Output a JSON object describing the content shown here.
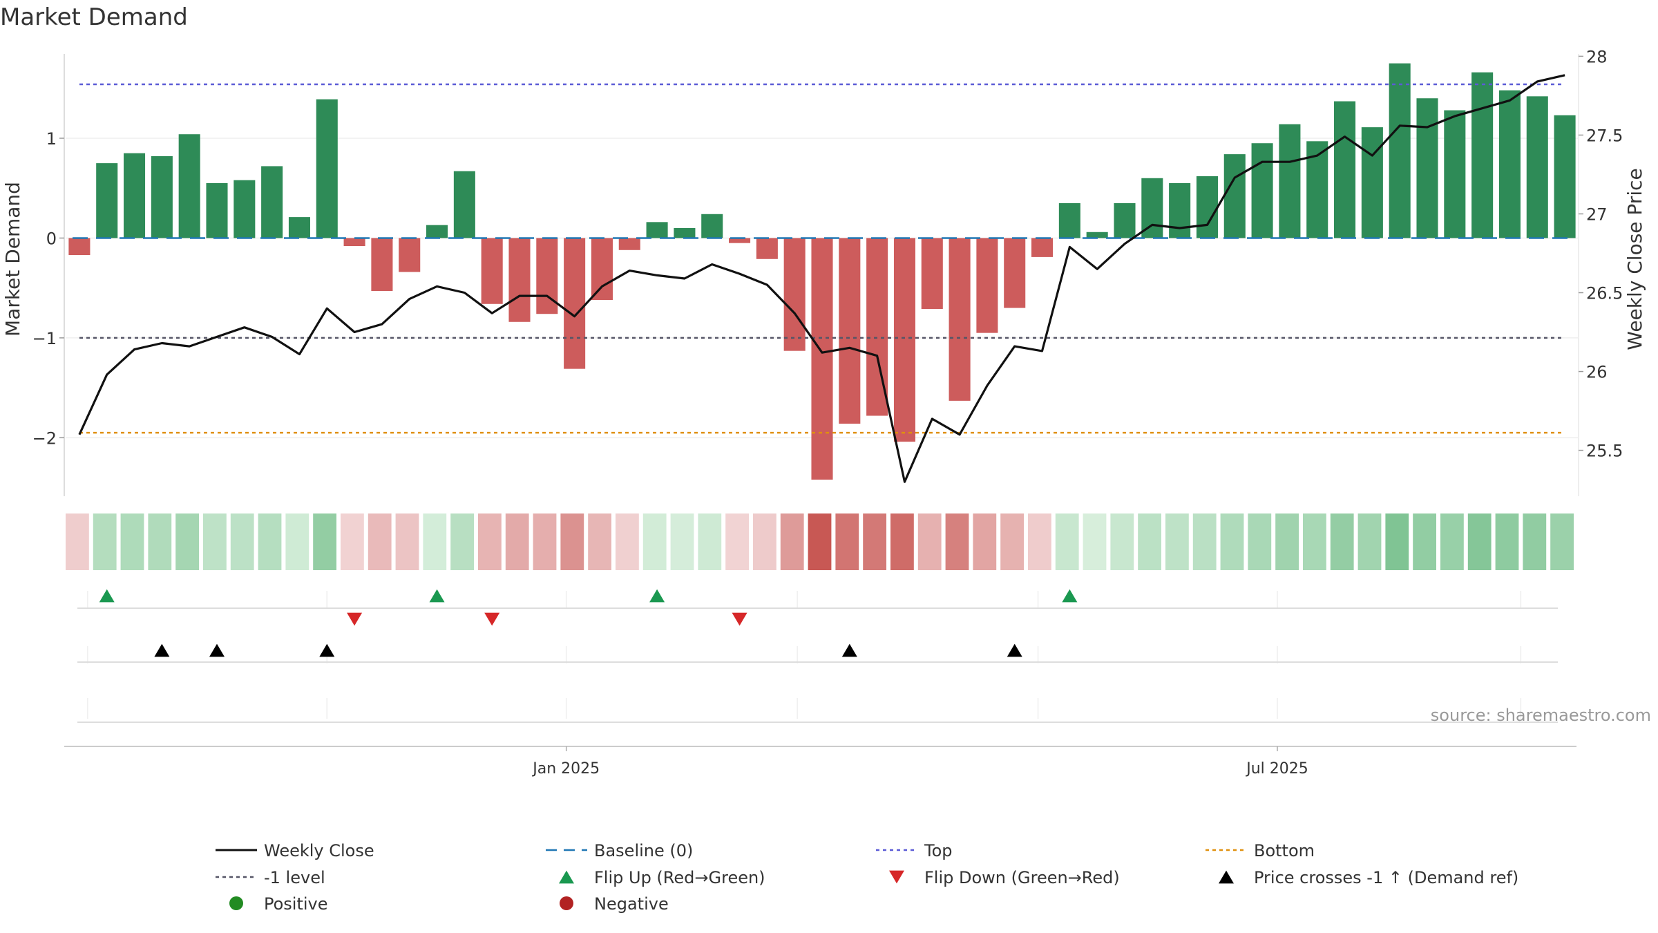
{
  "chart_data": {
    "type": "bar",
    "title": "Market Demand",
    "ylabel_left": "Market Demand",
    "ylabel_right": "Weekly Close Price",
    "source": "source: sharemaestro.com",
    "ylim_left": [
      -2.6,
      1.9
    ],
    "ylim_right": [
      25.2,
      28.05
    ],
    "yticks_left": [
      {
        "value": 1,
        "label": "1"
      },
      {
        "value": 0,
        "label": "0"
      },
      {
        "value": -1,
        "label": "−1"
      },
      {
        "value": -2,
        "label": "−2"
      }
    ],
    "yticks_right": [
      {
        "value": 28,
        "label": "28"
      },
      {
        "value": 27.5,
        "label": "27.5"
      },
      {
        "value": 27,
        "label": "27"
      },
      {
        "value": 26.5,
        "label": "26.5"
      },
      {
        "value": 26,
        "label": "26"
      },
      {
        "value": 25.5,
        "label": "25.5"
      }
    ],
    "reference_lines": {
      "top": 1.54,
      "bottom": -1.95,
      "minus_one": -1,
      "baseline": 0
    },
    "x_axis": {
      "week_range": [
        -0.5,
        54.5
      ],
      "date_ticks": [
        {
          "week": 17.7,
          "label": "Jan 2025"
        },
        {
          "week": 43.55,
          "label": "Jul 2025"
        }
      ],
      "grid_weeks": [
        0.3,
        9.0,
        17.7,
        26.1,
        34.85,
        43.55,
        52.4
      ]
    },
    "demand": [
      -0.17,
      0.75,
      0.85,
      0.82,
      1.04,
      0.55,
      0.58,
      0.72,
      0.21,
      1.39,
      -0.08,
      -0.53,
      -0.34,
      0.13,
      0.67,
      -0.66,
      -0.84,
      -0.76,
      -1.31,
      -0.62,
      -0.12,
      0.16,
      0.1,
      0.24,
      -0.05,
      -0.21,
      -1.13,
      -2.42,
      -1.86,
      -1.78,
      -2.04,
      -0.71,
      -1.63,
      -0.95,
      -0.7,
      -0.19,
      0.35,
      0.06,
      0.35,
      0.6,
      0.55,
      0.62,
      0.84,
      0.95,
      1.14,
      0.97,
      1.37,
      1.11,
      1.75,
      1.4,
      1.28,
      1.66,
      1.48,
      1.42,
      1.23
    ],
    "close": [
      25.6,
      25.98,
      26.14,
      26.18,
      26.16,
      26.22,
      26.28,
      26.22,
      26.11,
      26.4,
      26.25,
      26.3,
      26.46,
      26.54,
      26.5,
      26.37,
      26.48,
      26.48,
      26.35,
      26.54,
      26.64,
      26.61,
      26.59,
      26.68,
      26.62,
      26.55,
      26.37,
      26.12,
      26.15,
      26.1,
      25.3,
      25.7,
      25.6,
      25.91,
      26.16,
      26.13,
      26.79,
      26.65,
      26.81,
      26.93,
      26.91,
      26.93,
      27.23,
      27.33,
      27.33,
      27.37,
      27.49,
      27.37,
      27.56,
      27.55,
      27.62,
      27.67,
      27.72,
      27.84,
      27.88
    ],
    "flip_up_weeks": [
      1,
      13,
      21,
      36
    ],
    "flip_down_weeks": [
      10,
      15,
      24
    ],
    "price_cross_weeks": [
      3,
      5,
      9,
      28,
      34
    ],
    "legend": [
      {
        "key": "close",
        "label": "Weekly Close"
      },
      {
        "key": "baseline",
        "label": "Baseline (0)"
      },
      {
        "key": "top",
        "label": "Top"
      },
      {
        "key": "bottom",
        "label": "Bottom"
      },
      {
        "key": "minus_one",
        "label": "-1 level"
      },
      {
        "key": "flip_up",
        "label": "Flip Up (Red→Green)"
      },
      {
        "key": "flip_down",
        "label": "Flip Down (Green→Red)"
      },
      {
        "key": "price_cross",
        "label": "Price crosses -1 ↑ (Demand ref)"
      },
      {
        "key": "positive",
        "label": "Positive"
      },
      {
        "key": "negative",
        "label": "Negative"
      }
    ],
    "colors": {
      "positive_bar": "#2e8b57",
      "negative_bar": "#cd5c5c",
      "close_line": "#111111",
      "baseline": "#1f77b4",
      "top": "#5b5bd6",
      "bottom": "#e0900e",
      "minus_one": "#555566",
      "flip_up": "#1a9850",
      "flip_down": "#d62728",
      "price_cross": "#000000",
      "positive_dot": "#228b22",
      "negative_dot": "#b22222"
    }
  }
}
